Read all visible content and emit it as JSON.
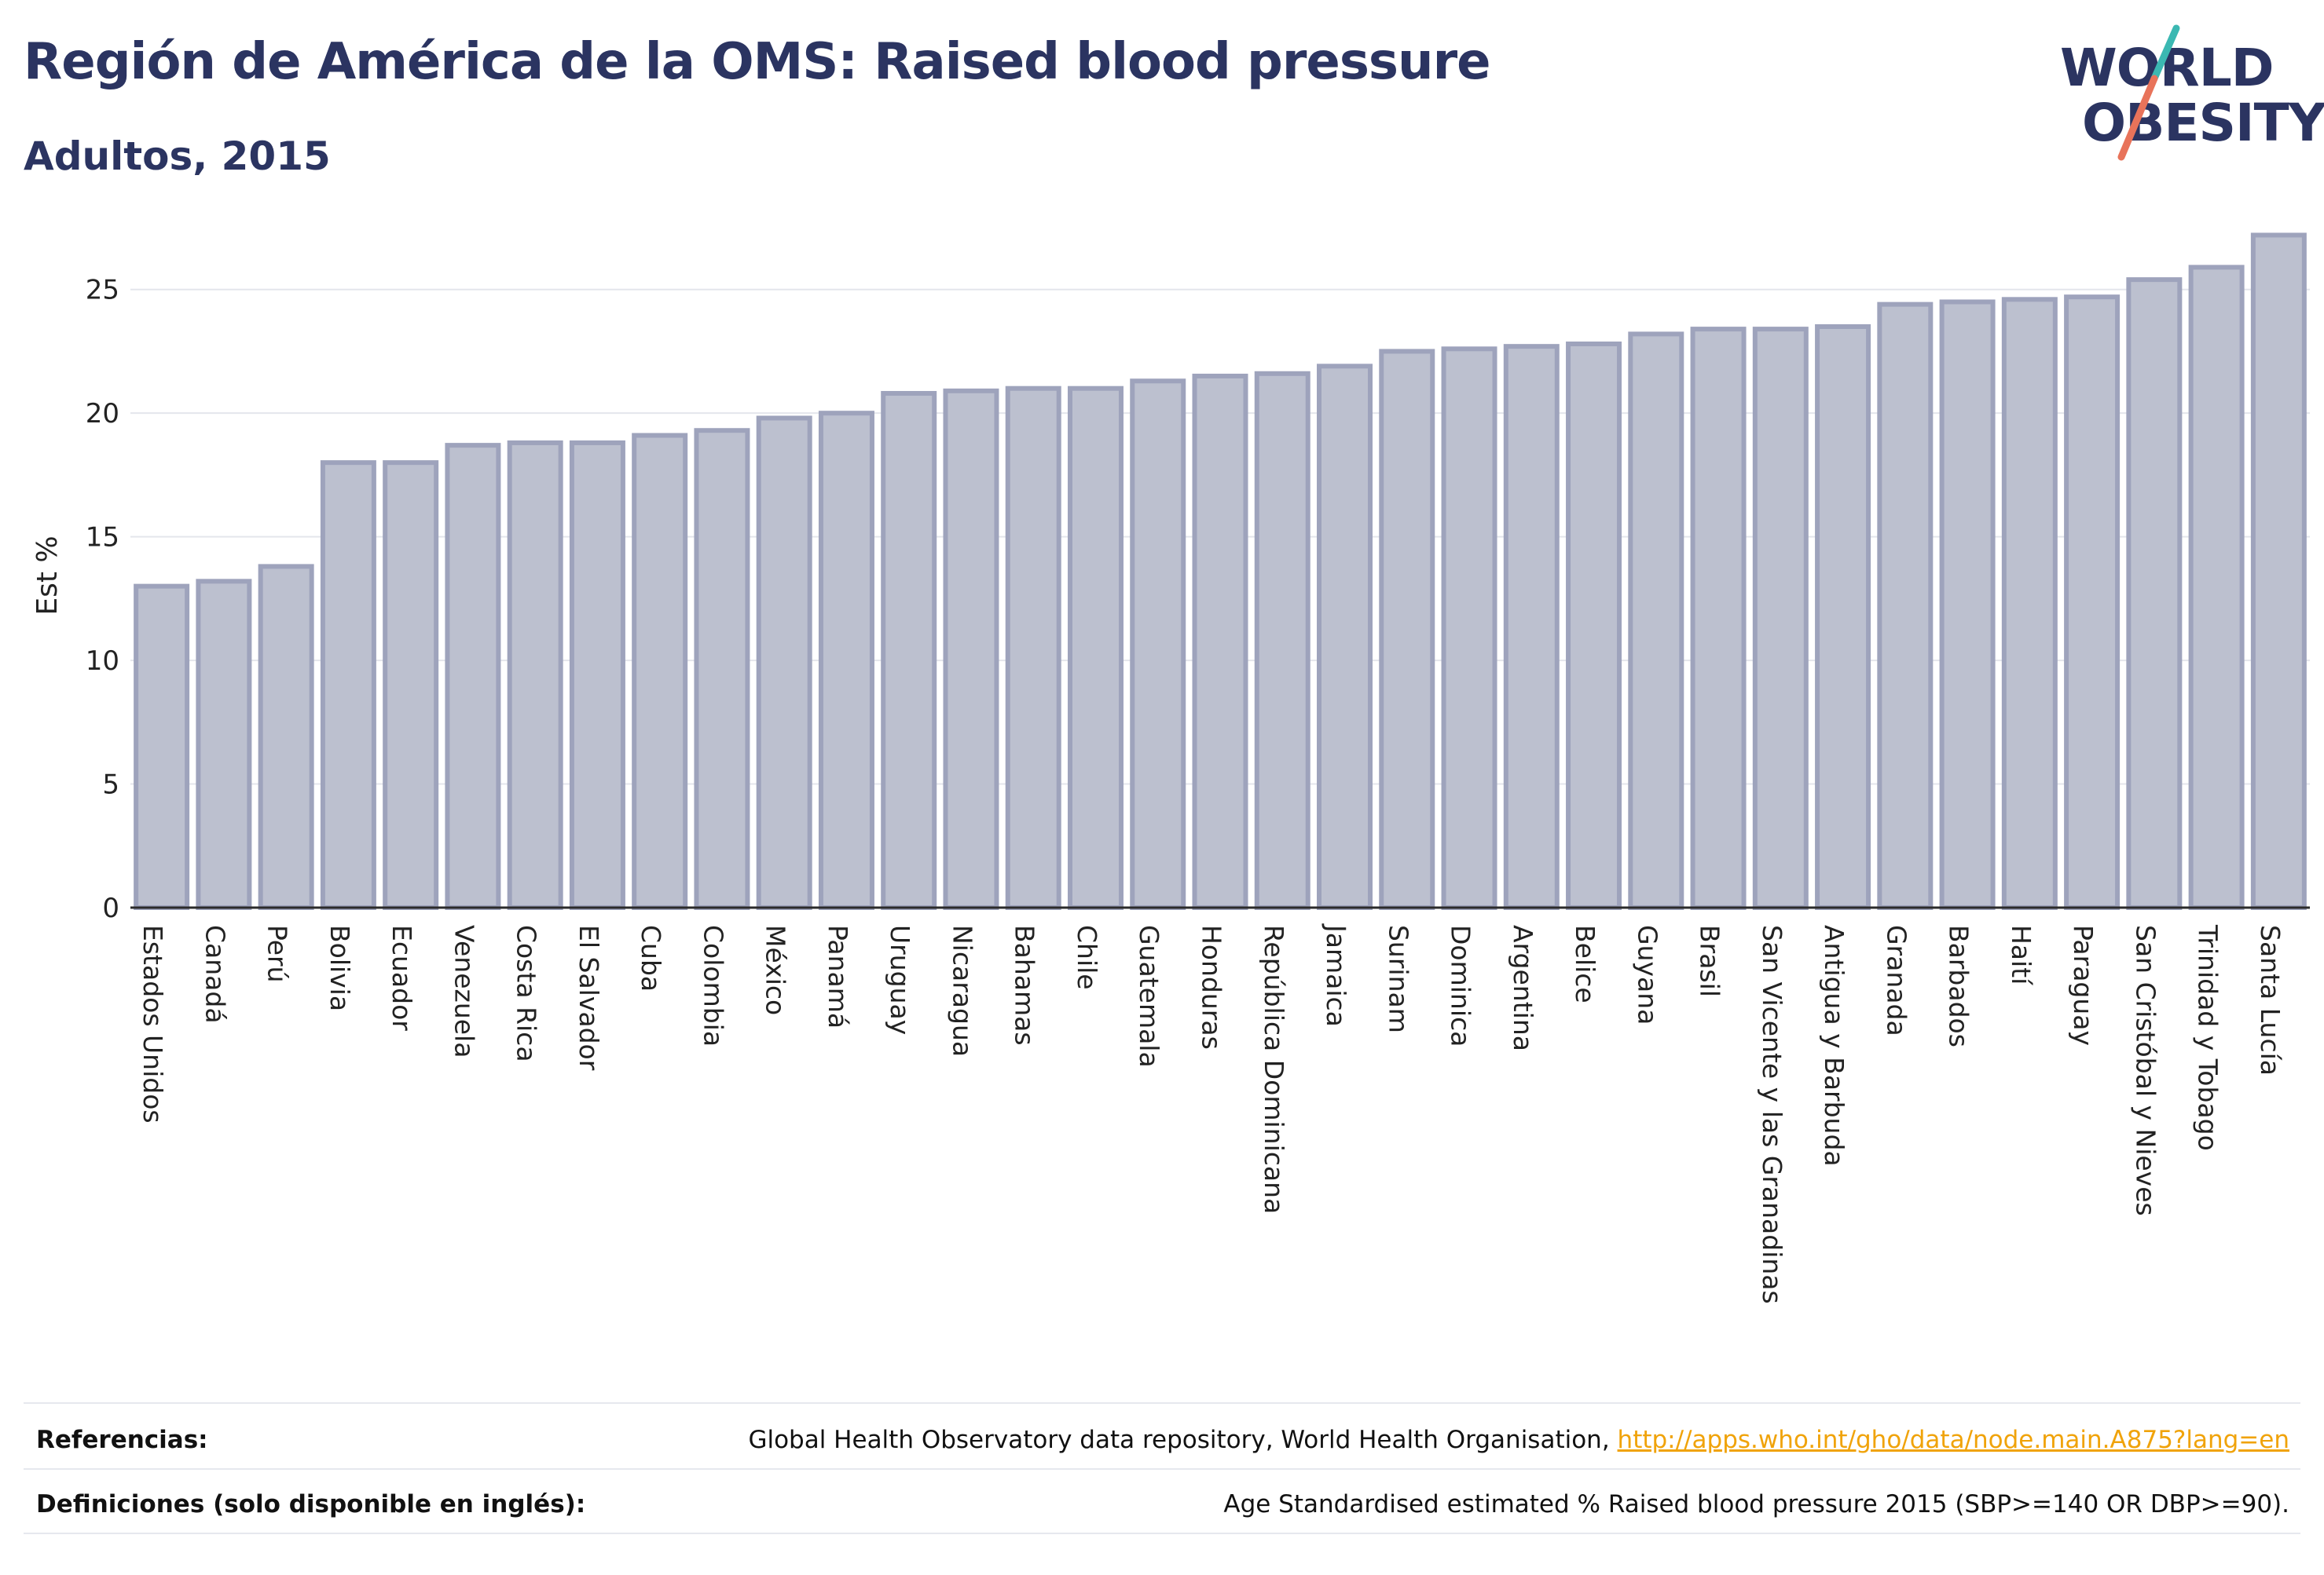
{
  "header": {
    "title": "Región de América de la OMS: Raised blood pressure",
    "subtitle": "Adultos, 2015"
  },
  "logo": {
    "line1": "WORLD",
    "line2": "OBESITY",
    "accent_teal": "#3bb8b2",
    "accent_coral": "#e8735a"
  },
  "chart_data": {
    "type": "bar",
    "ylabel": "Est %",
    "ylim": [
      0,
      27.5
    ],
    "yticks": [
      0,
      5,
      10,
      15,
      20,
      25
    ],
    "grid": true,
    "bar_fill": "#bcc0cf",
    "bar_edge": "#9ea3bc",
    "categories": [
      "Estados Unidos",
      "Canadá",
      "Perú",
      "Bolivia",
      "Ecuador",
      "Venezuela",
      "Costa Rica",
      "El Salvador",
      "Cuba",
      "Colombia",
      "México",
      "Panamá",
      "Uruguay",
      "Nicaragua",
      "Bahamas",
      "Chile",
      "Guatemala",
      "Honduras",
      "República Dominicana",
      "Jamaica",
      "Surinam",
      "Dominica",
      "Argentina",
      "Belice",
      "Guyana",
      "Brasil",
      "San Vicente y las Granadinas",
      "Antigua y Barbuda",
      "Granada",
      "Barbados",
      "Haití",
      "Paraguay",
      "San Cristóbal y Nieves",
      "Trinidad y Tobago",
      "Santa Lucía"
    ],
    "values": [
      13.0,
      13.2,
      13.8,
      18.0,
      18.0,
      18.7,
      18.8,
      18.8,
      19.1,
      19.3,
      19.8,
      20.0,
      20.8,
      20.9,
      21.0,
      21.0,
      21.3,
      21.5,
      21.6,
      21.9,
      22.5,
      22.6,
      22.7,
      22.8,
      23.2,
      23.4,
      23.4,
      23.5,
      24.4,
      24.5,
      24.6,
      24.7,
      25.4,
      25.9,
      27.2
    ]
  },
  "footer": {
    "references_label": "Referencias:",
    "references_text": "Global Health Observatory data repository, World Health Organisation, ",
    "references_link": "http://apps.who.int/gho/data/node.main.A875?lang=en",
    "definitions_label": "Definiciones (solo disponible en inglés):",
    "definitions_text": "Age Standardised estimated % Raised blood pressure 2015 (SBP>=140 OR DBP>=90)."
  }
}
